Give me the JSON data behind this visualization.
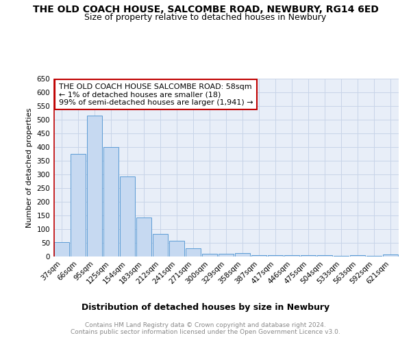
{
  "title": "THE OLD COACH HOUSE, SALCOMBE ROAD, NEWBURY, RG14 6ED",
  "subtitle": "Size of property relative to detached houses in Newbury",
  "xlabel": "Distribution of detached houses by size in Newbury",
  "ylabel": "Number of detached properties",
  "categories": [
    "37sqm",
    "66sqm",
    "95sqm",
    "125sqm",
    "154sqm",
    "183sqm",
    "212sqm",
    "241sqm",
    "271sqm",
    "300sqm",
    "329sqm",
    "358sqm",
    "387sqm",
    "417sqm",
    "446sqm",
    "475sqm",
    "504sqm",
    "533sqm",
    "563sqm",
    "592sqm",
    "621sqm"
  ],
  "values": [
    52,
    375,
    515,
    400,
    293,
    143,
    82,
    57,
    31,
    10,
    10,
    13,
    5,
    5,
    5,
    5,
    5,
    3,
    5,
    3,
    7
  ],
  "bar_color": "#c6d9f1",
  "bar_edge_color": "#5b9bd5",
  "highlight_line_color": "#c00000",
  "annotation_text": "THE OLD COACH HOUSE SALCOMBE ROAD: 58sqm\n← 1% of detached houses are smaller (18)\n99% of semi-detached houses are larger (1,941) →",
  "annotation_box_color": "#ffffff",
  "annotation_box_edge_color": "#c00000",
  "ylim": [
    0,
    650
  ],
  "yticks": [
    0,
    50,
    100,
    150,
    200,
    250,
    300,
    350,
    400,
    450,
    500,
    550,
    600,
    650
  ],
  "axes_facecolor": "#e8eef8",
  "grid_color": "#c8d4e8",
  "footer_text": "Contains HM Land Registry data © Crown copyright and database right 2024.\nContains public sector information licensed under the Open Government Licence v3.0.",
  "title_fontsize": 10,
  "subtitle_fontsize": 9,
  "xlabel_fontsize": 9,
  "ylabel_fontsize": 8,
  "tick_fontsize": 7.5,
  "annotation_fontsize": 8,
  "footer_fontsize": 6.5
}
